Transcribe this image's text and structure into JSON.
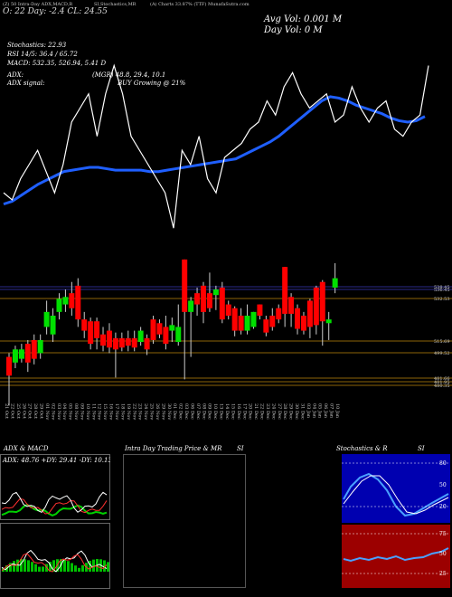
{
  "header": {
    "line1": "(Z) 50 Intra-Day ADX,MACD,R",
    "line1b": "SI,Stochastics,MR",
    "line1c": "(A) Charts 33.87% (TTF) MunafaSutra.com",
    "open_close": "O: 22   Day:  -2.4 CL: 24.55",
    "avg_vol": "Avg Vol: 0.001 M",
    "day_vol": "Day Vol: 0   M",
    "stochastics": "Stochastics: 22.93",
    "rsi": "RSI 14/5: 36.4  / 65.72",
    "macd": "MACD: 532.35,  526.94,  5.41 D",
    "adx": "ADX:",
    "adx_vals": "(MGR) 48.8,  29.4,  10.1",
    "adx_signal": "ADX  signal:",
    "buy_signal": "BUY Growing @ 21%"
  },
  "price_levels": [
    "538.45",
    "536.45",
    "532.53",
    "515.69",
    "499.52",
    "481.66",
    "481.95",
    "480.35"
  ],
  "dates": [
    "21 Oct",
    "22 Oct",
    "25 Oct",
    "26 Oct",
    "27 Oct",
    "28 Oct",
    "29 Oct",
    "01 Nov",
    "02 Nov",
    "03 Nov",
    "04 Nov",
    "05 Nov",
    "08 Nov",
    "09 Nov",
    "10 Nov",
    "11 Nov",
    "12 Nov",
    "15 Nov",
    "16 Nov",
    "17 Nov",
    "18 Nov",
    "19 Nov",
    "22 Nov",
    "23 Nov",
    "24 Nov",
    "25 Nov",
    "26 Nov",
    "29 Nov",
    "30 Nov",
    "01 Dec",
    "02 Dec",
    "03 Dec",
    "06 Dec",
    "07 Dec",
    "08 Dec",
    "09 Dec",
    "10 Dec",
    "13 Dec",
    "14 Dec",
    "15 Dec",
    "16 Dec",
    "17 Dec",
    "20 Dec",
    "21 Dec",
    "22 Dec",
    "23 Dec",
    "24 Dec",
    "27 Dec",
    "28 Dec",
    "29 Dec",
    "30 Dec",
    "31 Dec",
    "03 Jan",
    "04 Jan",
    "05 Jan",
    "06 Jan",
    "07 Jan",
    "10 Jan"
  ],
  "panels": {
    "adx_macd_title": "ADX  & MACD",
    "adx_readout": "ADX: 48.76  +DY: 29.41  -DY: 10.13",
    "intraday_title": "Intra  Day Trading Price  & MR",
    "intraday_title2": "SI",
    "stoch_title": "Stochastics  & R",
    "stoch_title2": "SI",
    "stoch_ticks": [
      "80",
      "50",
      "20"
    ],
    "rsi_ticks": [
      "75",
      "50",
      "25"
    ]
  },
  "colors": {
    "up": "#00e000",
    "down": "#ff0000",
    "ma": "#1f5fff",
    "price": "#ffffff",
    "level": "#b8860b",
    "blue_panel": "#0000b0",
    "red_panel": "#9c0000"
  },
  "chart_data": {
    "type": "candlestick",
    "ma_line_values": [
      462,
      464,
      468,
      472,
      476,
      479,
      482,
      485,
      486,
      487,
      488,
      488,
      487,
      486,
      486,
      486,
      486,
      485,
      485,
      486,
      487,
      488,
      489,
      490,
      491,
      492,
      493,
      494,
      497,
      500,
      503,
      506,
      510,
      515,
      520,
      525,
      530,
      535,
      538,
      537,
      535,
      532,
      530,
      528,
      526,
      523,
      521,
      520,
      521,
      524
    ],
    "price_line_values": [
      470,
      465,
      480,
      490,
      500,
      485,
      470,
      490,
      520,
      530,
      540,
      510,
      540,
      560,
      540,
      510,
      500,
      490,
      480,
      470,
      445,
      500,
      490,
      510,
      480,
      470,
      495,
      500,
      505,
      515,
      520,
      535,
      525,
      545,
      555,
      540,
      530,
      535,
      540,
      520,
      525,
      545,
      530,
      520,
      530,
      535,
      515,
      510,
      520,
      525,
      560
    ],
    "candles": [
      {
        "o": 496,
        "c": 486,
        "h": 498,
        "l": 470,
        "up": false
      },
      {
        "o": 493,
        "c": 500,
        "h": 502,
        "l": 490,
        "up": true
      },
      {
        "o": 495,
        "c": 500,
        "h": 503,
        "l": 493,
        "up": true
      },
      {
        "o": 503,
        "c": 493,
        "h": 505,
        "l": 488,
        "up": false
      },
      {
        "o": 505,
        "c": 495,
        "h": 508,
        "l": 492,
        "up": false
      },
      {
        "o": 498,
        "c": 505,
        "h": 508,
        "l": 495,
        "up": true
      },
      {
        "o": 512,
        "c": 520,
        "h": 526,
        "l": 508,
        "up": true
      },
      {
        "o": 508,
        "c": 518,
        "h": 522,
        "l": 504,
        "up": true
      },
      {
        "o": 520,
        "c": 527,
        "h": 530,
        "l": 516,
        "up": true
      },
      {
        "o": 524,
        "c": 528,
        "h": 532,
        "l": 520,
        "up": true
      },
      {
        "o": 530,
        "c": 522,
        "h": 536,
        "l": 518,
        "up": false
      },
      {
        "o": 534,
        "c": 516,
        "h": 538,
        "l": 512,
        "up": false
      },
      {
        "o": 516,
        "c": 510,
        "h": 520,
        "l": 506,
        "up": false
      },
      {
        "o": 515,
        "c": 503,
        "h": 517,
        "l": 500,
        "up": false
      },
      {
        "o": 515,
        "c": 506,
        "h": 517,
        "l": 500,
        "up": false
      },
      {
        "o": 508,
        "c": 502,
        "h": 512,
        "l": 499,
        "up": false
      },
      {
        "o": 510,
        "c": 501,
        "h": 514,
        "l": 498,
        "up": false
      },
      {
        "o": 506,
        "c": 500,
        "h": 509,
        "l": 485,
        "up": false
      },
      {
        "o": 506,
        "c": 501,
        "h": 509,
        "l": 499,
        "up": false
      },
      {
        "o": 506,
        "c": 502,
        "h": 510,
        "l": 499,
        "up": false
      },
      {
        "o": 506,
        "c": 501,
        "h": 510,
        "l": 499,
        "up": false
      },
      {
        "o": 504,
        "c": 510,
        "h": 512,
        "l": 502,
        "up": true
      },
      {
        "o": 506,
        "c": 500,
        "h": 508,
        "l": 497,
        "up": false
      },
      {
        "o": 516,
        "c": 505,
        "h": 518,
        "l": 503,
        "up": false
      },
      {
        "o": 514,
        "c": 508,
        "h": 516,
        "l": 506,
        "up": false
      },
      {
        "o": 512,
        "c": 503,
        "h": 518,
        "l": 500,
        "up": false
      },
      {
        "o": 510,
        "c": 513,
        "h": 517,
        "l": 504,
        "up": true
      },
      {
        "o": 504,
        "c": 512,
        "h": 524,
        "l": 502,
        "up": true
      },
      {
        "o": 548,
        "c": 520,
        "h": 548,
        "l": 484,
        "up": false
      },
      {
        "o": 520,
        "c": 526,
        "h": 528,
        "l": 496,
        "up": true
      },
      {
        "o": 530,
        "c": 524,
        "h": 533,
        "l": 518,
        "up": false
      },
      {
        "o": 534,
        "c": 520,
        "h": 536,
        "l": 514,
        "up": false
      },
      {
        "o": 530,
        "c": 522,
        "h": 541,
        "l": 520,
        "up": false
      },
      {
        "o": 529,
        "c": 532,
        "h": 534,
        "l": 521,
        "up": true
      },
      {
        "o": 533,
        "c": 516,
        "h": 536,
        "l": 514,
        "up": false
      },
      {
        "o": 524,
        "c": 518,
        "h": 526,
        "l": 516,
        "up": false
      },
      {
        "o": 522,
        "c": 510,
        "h": 523,
        "l": 507,
        "up": false
      },
      {
        "o": 518,
        "c": 510,
        "h": 522,
        "l": 508,
        "up": false
      },
      {
        "o": 510,
        "c": 518,
        "h": 524,
        "l": 508,
        "up": true
      },
      {
        "o": 512,
        "c": 520,
        "h": 520,
        "l": 511,
        "up": true
      },
      {
        "o": 524,
        "c": 518,
        "h": 524,
        "l": 516,
        "up": false
      },
      {
        "o": 516,
        "c": 509,
        "h": 518,
        "l": 507,
        "up": false
      },
      {
        "o": 518,
        "c": 512,
        "h": 522,
        "l": 510,
        "up": false
      },
      {
        "o": 522,
        "c": 516,
        "h": 524,
        "l": 514,
        "up": false
      },
      {
        "o": 544,
        "c": 519,
        "h": 544,
        "l": 512,
        "up": false
      },
      {
        "o": 528,
        "c": 519,
        "h": 530,
        "l": 512,
        "up": false
      },
      {
        "o": 522,
        "c": 511,
        "h": 524,
        "l": 508,
        "up": false
      },
      {
        "o": 518,
        "c": 510,
        "h": 520,
        "l": 508,
        "up": false
      },
      {
        "o": 526,
        "c": 512,
        "h": 527,
        "l": 506,
        "up": false
      },
      {
        "o": 533,
        "c": 513,
        "h": 534,
        "l": 508,
        "up": false
      },
      {
        "o": 536,
        "c": 515,
        "h": 537,
        "l": 502,
        "up": false
      },
      {
        "o": 514,
        "c": 516,
        "h": 520,
        "l": 505,
        "up": true
      },
      {
        "o": 533,
        "c": 538,
        "h": 546,
        "l": 530,
        "up": true
      }
    ],
    "ylim": [
      476,
      560
    ]
  }
}
